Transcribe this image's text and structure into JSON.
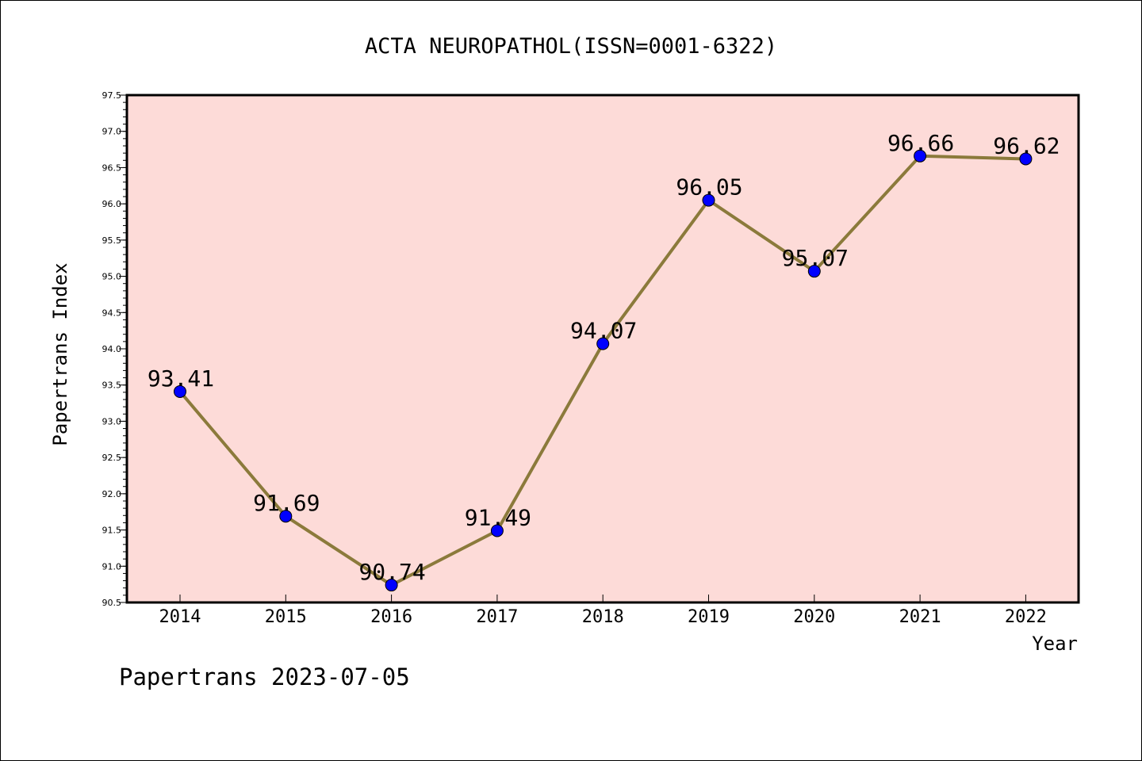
{
  "chart_data": {
    "type": "line",
    "title": "ACTA NEUROPATHOL(ISSN=0001-6322)",
    "xlabel": "Year",
    "ylabel": "Papertrans Index",
    "x": [
      "2014",
      "2015",
      "2016",
      "2017",
      "2018",
      "2019",
      "2020",
      "2021",
      "2022"
    ],
    "series": [
      {
        "values": [
          93.41,
          91.69,
          90.74,
          91.49,
          94.07,
          96.05,
          95.07,
          96.66,
          96.62
        ],
        "data_labels": [
          "93.41",
          "91.69",
          "90.74",
          "91.49",
          "94.07",
          "96.05",
          "95.07",
          "96.66",
          "96.62"
        ]
      }
    ],
    "ylim": [
      90.5,
      97.5
    ],
    "yticks": [
      "90.5",
      "91.0",
      "91.5",
      "92.0",
      "92.5",
      "93.0",
      "93.5",
      "94.0",
      "94.5",
      "95.0",
      "95.5",
      "96.0",
      "96.5",
      "97.0",
      "97.5"
    ],
    "grid": false,
    "colors": {
      "plot_background": "#fddbd8",
      "line": "#8b7a3b",
      "marker": "#0000ff"
    }
  },
  "footer": {
    "text": "Papertrans 2023-07-05"
  }
}
